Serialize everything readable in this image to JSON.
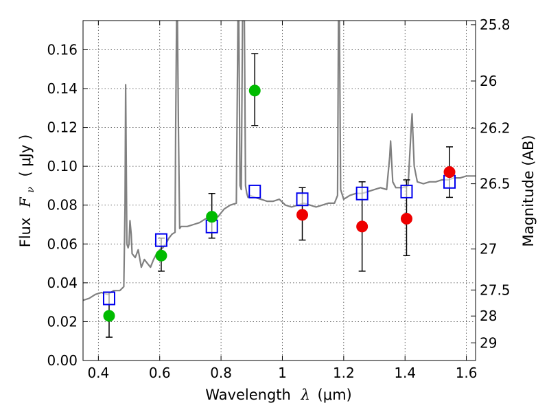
{
  "chart_data": {
    "type": "scatter",
    "xlabel": "Wavelength",
    "xlabel_symbol": "λ",
    "xlabel_unit": "(μm)",
    "ylabel": "Flux",
    "ylabel_symbol": "F",
    "ylabel_subscript": "ν",
    "ylabel_unit": "( μJy )",
    "y2label": "Magnitude (AB)",
    "xlim": [
      0.35,
      1.63
    ],
    "ylim": [
      0,
      0.175
    ],
    "grid": true,
    "x_ticks": [
      0.4,
      0.6,
      0.8,
      1.0,
      1.2,
      1.4,
      1.6
    ],
    "x_tick_labels": [
      "0.4",
      "0.6",
      "0.8",
      "1",
      "1.2",
      "1.4",
      "1.6"
    ],
    "y_ticks": [
      0,
      0.02,
      0.04,
      0.06,
      0.08,
      0.1,
      0.12,
      0.14,
      0.16
    ],
    "y_tick_labels": [
      "0.00",
      "0.02",
      "0.04",
      "0.06",
      "0.08",
      "0.10",
      "0.12",
      "0.14",
      "0.16"
    ],
    "y2_ticks": [
      {
        "label": "25.8",
        "flux": 0.1729
      },
      {
        "label": "26",
        "flux": 0.1439
      },
      {
        "label": "26.2",
        "flux": 0.1196
      },
      {
        "label": "26.5",
        "flux": 0.091
      },
      {
        "label": "27",
        "flux": 0.0574
      },
      {
        "label": "27.5",
        "flux": 0.0363
      },
      {
        "label": "28",
        "flux": 0.0229
      },
      {
        "label": "29",
        "flux": 0.0091
      }
    ],
    "spectrum_color": "#808080",
    "spectrum": {
      "x": [
        0.35,
        0.37,
        0.39,
        0.41,
        0.43,
        0.45,
        0.47,
        0.483,
        0.487,
        0.489,
        0.493,
        0.497,
        0.5,
        0.503,
        0.507,
        0.51,
        0.52,
        0.53,
        0.54,
        0.55,
        0.56,
        0.57,
        0.58,
        0.59,
        0.6,
        0.61,
        0.62,
        0.63,
        0.64,
        0.65,
        0.652,
        0.655,
        0.658,
        0.661,
        0.665,
        0.67,
        0.69,
        0.71,
        0.73,
        0.75,
        0.77,
        0.79,
        0.81,
        0.83,
        0.85,
        0.855,
        0.858,
        0.862,
        0.866,
        0.87,
        0.876,
        0.88,
        0.884,
        0.888,
        0.895,
        0.91,
        0.93,
        0.95,
        0.97,
        0.99,
        1.01,
        1.03,
        1.05,
        1.07,
        1.09,
        1.11,
        1.13,
        1.15,
        1.17,
        1.18,
        1.183,
        1.186,
        1.19,
        1.2,
        1.22,
        1.24,
        1.26,
        1.28,
        1.3,
        1.32,
        1.34,
        1.35,
        1.353,
        1.36,
        1.37,
        1.39,
        1.41,
        1.42,
        1.423,
        1.43,
        1.44,
        1.46,
        1.48,
        1.5,
        1.52,
        1.54,
        1.56,
        1.58,
        1.6,
        1.63
      ],
      "y": [
        0.031,
        0.032,
        0.034,
        0.035,
        0.034,
        0.036,
        0.036,
        0.038,
        0.08,
        0.142,
        0.06,
        0.058,
        0.06,
        0.072,
        0.065,
        0.055,
        0.053,
        0.057,
        0.048,
        0.052,
        0.05,
        0.048,
        0.052,
        0.055,
        0.057,
        0.058,
        0.06,
        0.063,
        0.065,
        0.066,
        0.12,
        0.175,
        0.175,
        0.12,
        0.068,
        0.069,
        0.069,
        0.07,
        0.071,
        0.073,
        0.074,
        0.074,
        0.078,
        0.08,
        0.081,
        0.175,
        0.175,
        0.09,
        0.088,
        0.175,
        0.175,
        0.09,
        0.086,
        0.084,
        0.085,
        0.084,
        0.083,
        0.082,
        0.082,
        0.083,
        0.08,
        0.079,
        0.08,
        0.081,
        0.08,
        0.079,
        0.08,
        0.081,
        0.081,
        0.085,
        0.175,
        0.175,
        0.088,
        0.083,
        0.085,
        0.086,
        0.086,
        0.087,
        0.088,
        0.089,
        0.088,
        0.105,
        0.113,
        0.092,
        0.089,
        0.089,
        0.09,
        0.12,
        0.127,
        0.1,
        0.092,
        0.091,
        0.092,
        0.092,
        0.093,
        0.093,
        0.094,
        0.094,
        0.095,
        0.095
      ]
    },
    "model_points": {
      "marker": "open-square",
      "color": "#0000ee",
      "x": [
        0.435,
        0.605,
        0.77,
        0.91,
        1.065,
        1.26,
        1.405,
        1.545
      ],
      "y": [
        0.032,
        0.062,
        0.069,
        0.087,
        0.083,
        0.086,
        0.087,
        0.092
      ]
    },
    "observed_points": {
      "color_detection": "#00bb00",
      "color_other": "#ee0000",
      "errorbar_color": "#000000",
      "x": [
        0.435,
        0.605,
        0.77,
        0.91,
        1.065,
        1.26,
        1.405,
        1.545
      ],
      "y": [
        0.023,
        0.054,
        0.074,
        0.139,
        0.075,
        0.069,
        0.073,
        0.097
      ],
      "yerr_low": [
        0.012,
        0.046,
        0.063,
        0.121,
        0.062,
        0.046,
        0.054,
        0.084
      ],
      "yerr_high": [
        0.035,
        0.063,
        0.086,
        0.158,
        0.089,
        0.092,
        0.093,
        0.11
      ],
      "group": [
        "green",
        "green",
        "green",
        "green",
        "red",
        "red",
        "red",
        "red"
      ]
    }
  }
}
